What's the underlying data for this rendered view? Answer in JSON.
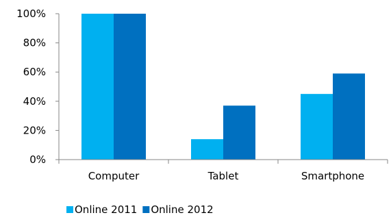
{
  "chart_data": {
    "type": "bar",
    "categories": [
      "Computer",
      "Tablet",
      "Smartphone"
    ],
    "series": [
      {
        "name": "Online 2011",
        "values": [
          100,
          14,
          45
        ],
        "color": "#00b0f0"
      },
      {
        "name": "Online 2012",
        "values": [
          100,
          37,
          59
        ],
        "color": "#0070c0"
      }
    ],
    "ylim": [
      0,
      100
    ],
    "yticks": [
      "0%",
      "20%",
      "40%",
      "60%",
      "80%",
      "100%"
    ],
    "grid": false,
    "legend": "bottom",
    "title": "",
    "xlabel": "",
    "ylabel": ""
  }
}
